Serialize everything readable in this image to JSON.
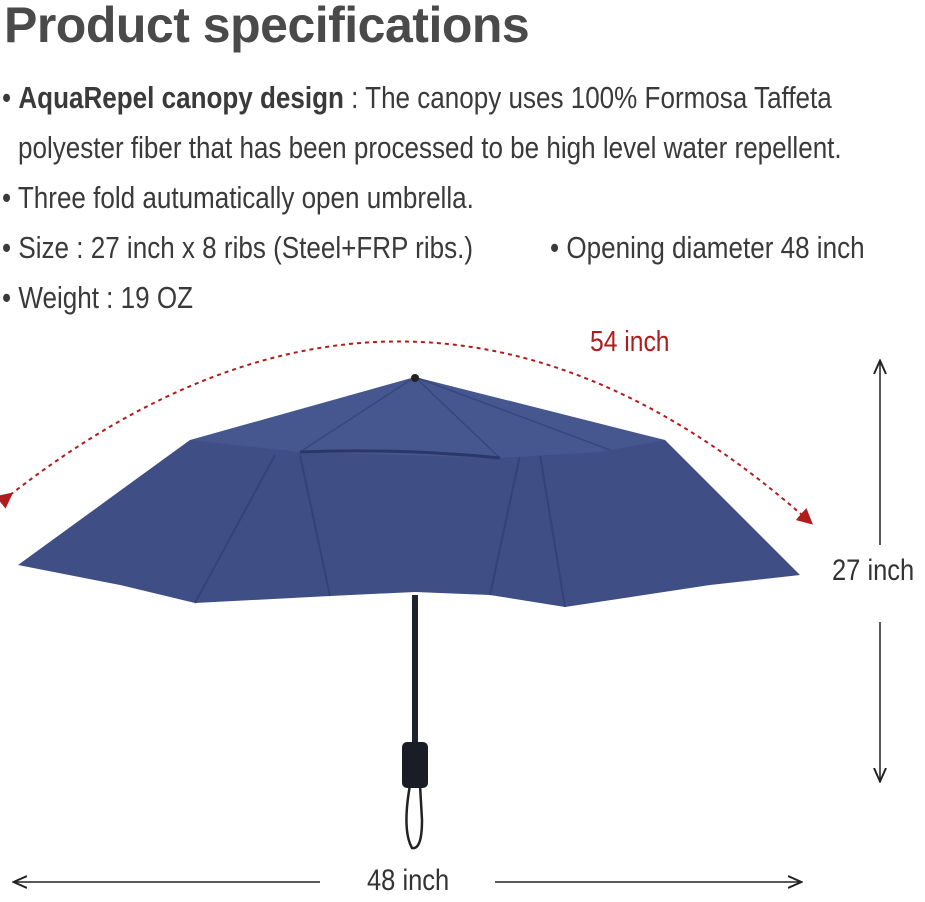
{
  "title": "Product specifications",
  "specs": {
    "canopy_bold": "AquaRepel canopy design",
    "canopy_text": " : The canopy uses 100% Formosa Taffeta",
    "canopy_text2": "polyester fiber that has been processed to be high level water repellent.",
    "fold": "Three fold autumatically open umbrella.",
    "size": "Size : 27 inch x 8 ribs (Steel+FRP ribs.)",
    "diameter": "Opening diameter 48 inch",
    "weight": "Weight : 19 OZ",
    "bullet": "•"
  },
  "dimensions": {
    "arc": "54 inch",
    "height": "27 inch",
    "width": "48 inch"
  },
  "colors": {
    "canopy": "#3f4f86",
    "arc": "#b01c1c",
    "text": "#3a3a3a"
  }
}
